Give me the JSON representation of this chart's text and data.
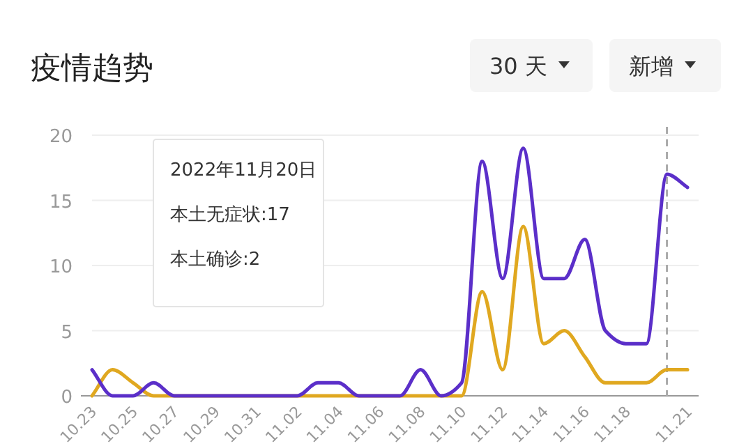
{
  "chart_data": {
    "type": "line",
    "title": "疫情趋势",
    "categories": [
      "10.23",
      null,
      "10.25",
      null,
      "10.27",
      null,
      "10.29",
      null,
      "10.31",
      null,
      "11.02",
      null,
      "11.04",
      null,
      "11.06",
      null,
      "11.08",
      null,
      "11.10",
      null,
      "11.12",
      null,
      "11.14",
      null,
      "11.16",
      null,
      "11.18",
      null,
      null,
      "11.21"
    ],
    "series": [
      {
        "color": "#5b2fc9",
        "values": [
          2,
          0,
          0,
          1,
          0,
          0,
          0,
          0,
          0,
          0,
          0,
          1,
          1,
          0,
          0,
          0,
          2,
          0,
          1,
          18,
          9,
          19,
          9,
          9,
          12,
          5,
          4,
          4,
          17,
          16
        ]
      },
      {
        "color": "#e0a820",
        "values": [
          0,
          2,
          1,
          0,
          0,
          0,
          0,
          0,
          0,
          0,
          0,
          0,
          0,
          0,
          0,
          0,
          0,
          0,
          0,
          8,
          2,
          13,
          4,
          5,
          3,
          1,
          1,
          1,
          2,
          2
        ]
      }
    ],
    "ylim": [
      0,
      20
    ],
    "yticks": [
      0,
      5,
      10,
      15,
      20
    ],
    "grid": "y",
    "annotations": [
      "30 天",
      "新增",
      "2022年11月20日",
      "本土无症状:17",
      "本土确诊:2"
    ]
  }
}
